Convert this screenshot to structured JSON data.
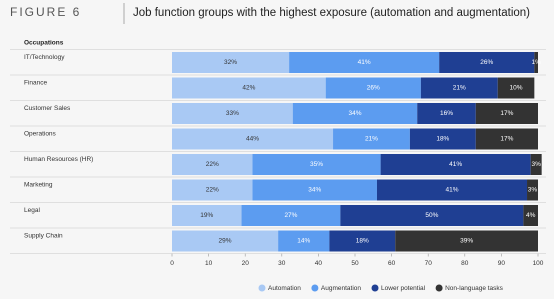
{
  "chart_data": {
    "type": "stacked-bar-horizontal",
    "figure_label": "FIGURE 6",
    "title": "Job function groups with the highest exposure (automation and augmentation)",
    "category_header": "Occupations",
    "categories": [
      "IT/Technology",
      "Finance",
      "Customer Sales",
      "Operations",
      "Human Resources (HR)",
      "Marketing",
      "Legal",
      "Supply Chain"
    ],
    "series": [
      {
        "name": "Automation",
        "color": "#a9c9f4",
        "values": [
          32,
          42,
          33,
          44,
          22,
          22,
          19,
          29
        ],
        "value_labels": [
          "32%",
          "42%",
          "33%",
          "44%",
          "22%",
          "22%",
          "19%",
          "29%"
        ]
      },
      {
        "name": "Augmentation",
        "color": "#5c9cf0",
        "values": [
          41,
          26,
          34,
          21,
          35,
          34,
          27,
          14
        ],
        "value_labels": [
          "41%",
          "26%",
          "34%",
          "21%",
          "35%",
          "34%",
          "27%",
          "14%"
        ]
      },
      {
        "name": "Lower potential",
        "color": "#1f3f93",
        "values": [
          26,
          21,
          16,
          18,
          41,
          41,
          50,
          18
        ],
        "value_labels": [
          "26%",
          "21%",
          "16%",
          "18%",
          "41%",
          "41%",
          "50%",
          "18%"
        ]
      },
      {
        "name": "Non-language tasks",
        "color": "#333333",
        "values": [
          1,
          10,
          17,
          17,
          3,
          3,
          4,
          39
        ],
        "value_labels": [
          "1%",
          "10%",
          "17%",
          "17%",
          "3%",
          "3%",
          "4%",
          "39%"
        ]
      }
    ],
    "xlim": [
      0,
      100
    ],
    "xticks": [
      0,
      10,
      20,
      30,
      40,
      50,
      60,
      70,
      80,
      90,
      100
    ]
  }
}
